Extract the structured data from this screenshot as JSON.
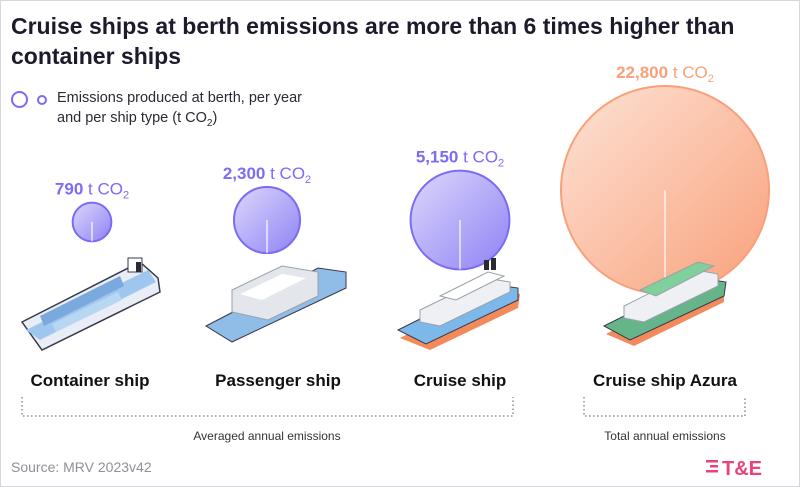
{
  "title": "Cruise ships at berth emissions are more than 6 times higher than container ships",
  "legend": {
    "text": "Emissions produced at berth, per year and per ship type (t CO",
    "sub": "2",
    "close": ")"
  },
  "source": "Source: MRV 2023v42",
  "logo": {
    "text": "T&E",
    "color": "#e8447a"
  },
  "colors": {
    "averaged": "#7b6cf6",
    "total": "#f9a07a"
  },
  "chart_data": {
    "type": "bubble",
    "unit": "t CO2",
    "categories": [
      "Container ship",
      "Passenger ship",
      "Cruise ship",
      "Cruise ship Azura"
    ],
    "values": [
      790,
      2300,
      5150,
      22800
    ],
    "value_labels": [
      "790 t CO",
      "2,300 t CO",
      "5,150 t CO",
      "22,800 t CO"
    ],
    "value_label_sub": "2",
    "groups": [
      {
        "label": "Averaged annual emissions",
        "categories": [
          "Container ship",
          "Passenger ship",
          "Cruise ship"
        ]
      },
      {
        "label": "Total annual emissions",
        "categories": [
          "Cruise ship Azura"
        ]
      }
    ]
  }
}
